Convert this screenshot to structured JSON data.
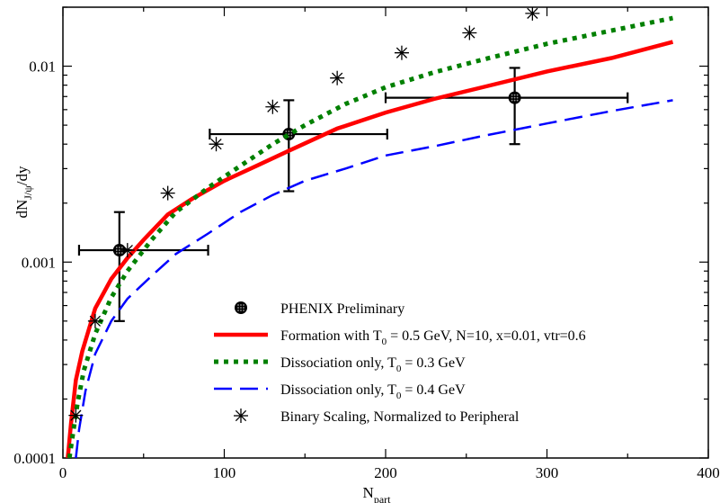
{
  "colors": {
    "formation": "#ff0000",
    "dissociation_03": "#008000",
    "dissociation_04": "#0000ff",
    "data": "#000000"
  },
  "chart_data": {
    "type": "scatter",
    "title": "",
    "xlabel": {
      "main": "N",
      "sub": "part"
    },
    "ylabel": {
      "main": "dN",
      "sub": "J/ψ",
      "rest": "/dy"
    },
    "xlim": [
      0,
      400
    ],
    "ylim": [
      0.0001,
      0.02
    ],
    "yscale": "log",
    "grid": false,
    "legend_placement": "bottom-right",
    "xticks": [
      {
        "value": 0,
        "label": "0"
      },
      {
        "value": 100,
        "label": "100"
      },
      {
        "value": 200,
        "label": "200"
      },
      {
        "value": 300,
        "label": "300"
      },
      {
        "value": 400,
        "label": "400"
      }
    ],
    "yticks": [
      {
        "value": 0.0001,
        "label": "0.0001"
      },
      {
        "value": 0.001,
        "label": "0.001"
      },
      {
        "value": 0.01,
        "label": "0.01"
      }
    ],
    "series": [
      {
        "name": "PHENIX Preliminary",
        "kind": "errorbar",
        "points": [
          {
            "x": 35,
            "y": 0.00115,
            "xerr_low": 25,
            "xerr_high": 55,
            "yerr_low": 0.00065,
            "yerr_high": 0.00065
          },
          {
            "x": 140,
            "y": 0.0045,
            "xerr_low": 49,
            "xerr_high": 61,
            "yerr_low": 0.0022,
            "yerr_high": 0.0022
          },
          {
            "x": 280,
            "y": 0.0069,
            "xerr_low": 80,
            "xerr_high": 70,
            "yerr_low": 0.0029,
            "yerr_high": 0.0029
          }
        ]
      },
      {
        "name": "Formation with T0 = 0.5 GeV, N=10, x=0.01, vtr=0.6",
        "legend_label": {
          "pre": "Formation with T",
          "sub": "0",
          "post": " = 0.5 GeV, N=10, x=0.01, vtr=0.6"
        },
        "kind": "line",
        "style": "solid",
        "color_key": "formation",
        "x": [
          3,
          5,
          8,
          12,
          20,
          30,
          40,
          50,
          65,
          80,
          100,
          120,
          140,
          170,
          200,
          230,
          260,
          300,
          340,
          378
        ],
        "y": [
          0.0001,
          0.00015,
          0.00025,
          0.00035,
          0.00058,
          0.00082,
          0.00105,
          0.0013,
          0.00175,
          0.0021,
          0.0026,
          0.0031,
          0.0037,
          0.0048,
          0.0058,
          0.0068,
          0.0078,
          0.0094,
          0.011,
          0.0133
        ]
      },
      {
        "name": "Dissociation only, T0 = 0.3 GeV",
        "legend_label": {
          "pre": "Dissociation only, T",
          "sub": "0",
          "post": " = 0.3 GeV"
        },
        "kind": "line",
        "style": "dotted",
        "color_key": "dissociation_03",
        "x": [
          4,
          6,
          9,
          13,
          20,
          30,
          40,
          55,
          70,
          90,
          110,
          130,
          150,
          175,
          200,
          230,
          260,
          300,
          340,
          378
        ],
        "y": [
          0.0001,
          0.00013,
          0.00019,
          0.00028,
          0.00043,
          0.00066,
          0.0009,
          0.0013,
          0.0018,
          0.0024,
          0.0031,
          0.004,
          0.005,
          0.0064,
          0.0078,
          0.0093,
          0.0108,
          0.013,
          0.0152,
          0.0176
        ]
      },
      {
        "name": "Dissociation only, T0 = 0.4 GeV",
        "legend_label": {
          "pre": "Dissociation only, T",
          "sub": "0",
          "post": " = 0.4 GeV"
        },
        "kind": "line",
        "style": "dashed",
        "color_key": "dissociation_04",
        "x": [
          8,
          10,
          14,
          20,
          30,
          40,
          55,
          70,
          90,
          110,
          130,
          150,
          175,
          200,
          230,
          260,
          300,
          340,
          378
        ],
        "y": [
          0.0001,
          0.00014,
          0.00022,
          0.00034,
          0.0005,
          0.00065,
          0.00085,
          0.0011,
          0.0014,
          0.0018,
          0.0022,
          0.0026,
          0.003,
          0.0035,
          0.0039,
          0.0044,
          0.0051,
          0.0059,
          0.0067
        ]
      },
      {
        "name": "Binary Scaling, Normalized to Peripheral",
        "kind": "marker",
        "marker": "asterisk",
        "x": [
          8,
          20,
          40,
          65,
          95,
          130,
          170,
          210,
          252,
          291
        ],
        "y": [
          0.000165,
          0.0005,
          0.00115,
          0.00225,
          0.004,
          0.0062,
          0.0087,
          0.0117,
          0.0148,
          0.0186
        ]
      }
    ]
  }
}
